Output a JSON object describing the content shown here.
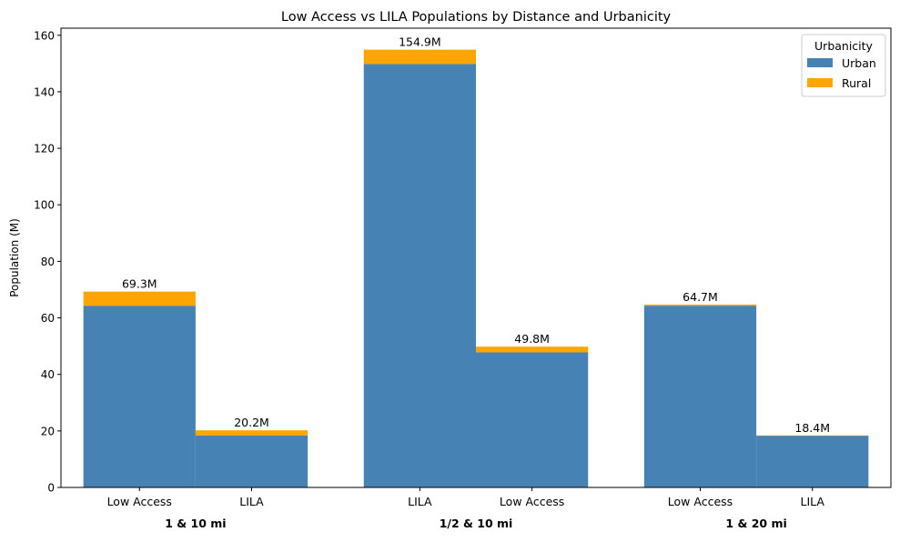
{
  "chart_data": {
    "type": "bar",
    "stacked": true,
    "title": "Low Access vs LILA Populations by Distance and Urbanicity",
    "ylabel": "Population (M)",
    "xlabel": "",
    "ylim": [
      0,
      162.5
    ],
    "yticks": [
      0,
      20,
      40,
      60,
      80,
      100,
      120,
      140,
      160
    ],
    "grid": false,
    "legend": {
      "title": "Urbanicity",
      "placement": "top-right",
      "entries": [
        "Urban",
        "Rural"
      ]
    },
    "colors": {
      "Urban": "#4682b4",
      "Rural": "#ffa500"
    },
    "groups": [
      {
        "label": "1 & 10 mi",
        "bars": [
          {
            "category": "Low Access",
            "urban": 64.3,
            "rural": 5.0,
            "total_label": "69.3M"
          },
          {
            "category": "LILA",
            "urban": 18.4,
            "rural": 1.8,
            "total_label": "20.2M"
          }
        ]
      },
      {
        "label": "1/2 & 10 mi",
        "bars": [
          {
            "category": "LILA",
            "urban": 149.8,
            "rural": 5.1,
            "total_label": "154.9M"
          },
          {
            "category": "Low Access",
            "urban": 47.8,
            "rural": 2.0,
            "total_label": "49.8M"
          }
        ]
      },
      {
        "label": "1 & 20 mi",
        "bars": [
          {
            "category": "Low Access",
            "urban": 64.3,
            "rural": 0.4,
            "total_label": "64.7M"
          },
          {
            "category": "LILA",
            "urban": 18.3,
            "rural": 0.1,
            "total_label": "18.4M"
          }
        ]
      }
    ]
  }
}
